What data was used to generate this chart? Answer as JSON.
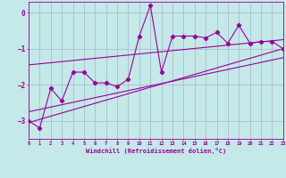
{
  "xlabel": "Windchill (Refroidissement éolien,°C)",
  "xlim": [
    0,
    23
  ],
  "ylim": [
    -3.5,
    0.3
  ],
  "yticks": [
    0,
    -1,
    -2,
    -3
  ],
  "xticks": [
    0,
    1,
    2,
    3,
    4,
    5,
    6,
    7,
    8,
    9,
    10,
    11,
    12,
    13,
    14,
    15,
    16,
    17,
    18,
    19,
    20,
    21,
    22,
    23
  ],
  "bg_color": "#c5e8e8",
  "line_color": "#990099",
  "grid_color": "#a0b8c8",
  "series": {
    "main": {
      "x": [
        0,
        1,
        2,
        3,
        4,
        5,
        6,
        7,
        8,
        9,
        10,
        11,
        12,
        13,
        14,
        15,
        16,
        17,
        18,
        19,
        20,
        21,
        22,
        23
      ],
      "y": [
        -3.0,
        -3.2,
        -2.1,
        -2.45,
        -1.65,
        -1.65,
        -1.95,
        -1.95,
        -2.05,
        -1.85,
        -0.65,
        0.2,
        -1.65,
        -0.65,
        -0.65,
        -0.65,
        -0.7,
        -0.55,
        -0.85,
        -0.35,
        -0.85,
        -0.8,
        -0.8,
        -1.0
      ]
    },
    "upper": {
      "x": [
        0,
        23
      ],
      "y": [
        -1.45,
        -0.75
      ]
    },
    "lower": {
      "x": [
        0,
        23
      ],
      "y": [
        -2.75,
        -1.25
      ]
    },
    "regression": {
      "x": [
        0,
        23
      ],
      "y": [
        -3.05,
        -1.0
      ]
    }
  }
}
